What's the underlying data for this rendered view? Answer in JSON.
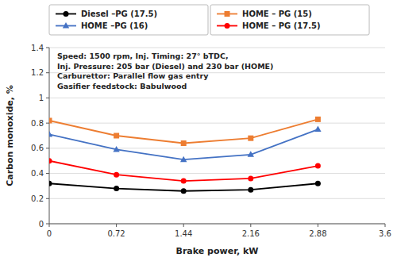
{
  "chart_data": {
    "type": "line",
    "xlabel": "Brake power, kW",
    "ylabel": "Carbon monoxide, %",
    "x": [
      0,
      0.72,
      1.44,
      2.16,
      2.88
    ],
    "series": [
      {
        "name": "Diesel –PG (17.5)",
        "color": "#000000",
        "marker": "circle",
        "values": [
          0.32,
          0.28,
          0.26,
          0.27,
          0.32
        ]
      },
      {
        "name": "HOME –PG (16)",
        "color": "#4472C4",
        "marker": "triangle",
        "values": [
          0.71,
          0.59,
          0.51,
          0.55,
          0.75
        ]
      },
      {
        "name": "HOME – PG (15)",
        "color": "#ED7D31",
        "marker": "square",
        "values": [
          0.82,
          0.7,
          0.64,
          0.68,
          0.83
        ]
      },
      {
        "name": "HOME – PG (17.5)",
        "color": "#FF0000",
        "marker": "circle",
        "values": [
          0.5,
          0.39,
          0.34,
          0.36,
          0.46
        ]
      }
    ],
    "xlim": [
      0,
      3.6
    ],
    "ylim": [
      0,
      1.4
    ],
    "xticks": [
      0,
      0.72,
      1.44,
      2.16,
      2.88,
      3.6
    ],
    "yticks": [
      0,
      0.2,
      0.4,
      0.6,
      0.8,
      1,
      1.2,
      1.4
    ],
    "grid": true,
    "legend": "top",
    "annotations": [
      "Speed: 1500 rpm, Inj. Timing: 27° bTDC,",
      "Inj. Pressure: 205 bar (Diesel) and 230 bar (HOME)",
      "Carburettor: Parallel flow gas entry",
      "Gasifier feedstock: Babulwood"
    ]
  }
}
